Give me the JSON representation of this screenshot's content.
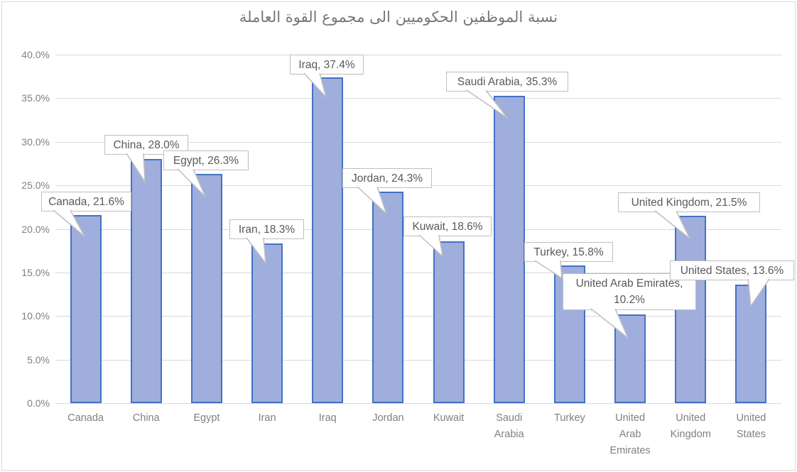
{
  "chart_data": {
    "type": "bar",
    "title": "نسبة الموظفين الحكوميين الى مجموع القوة العاملة",
    "xlabel": "",
    "ylabel": "",
    "categories": [
      "Canada",
      "China",
      "Egypt",
      "Iran",
      "Iraq",
      "Jordan",
      "Kuwait",
      "Saudi Arabia",
      "Turkey",
      "United Arab Emirates",
      "United Kingdom",
      "United States"
    ],
    "values": [
      21.6,
      28.0,
      26.3,
      18.3,
      37.4,
      24.3,
      18.6,
      35.3,
      15.8,
      10.2,
      21.5,
      13.6
    ],
    "unit": "%",
    "ylim": [
      0,
      40
    ],
    "ytick_step": 5,
    "ytick_labels": [
      "0.0%",
      "5.0%",
      "10.0%",
      "15.0%",
      "20.0%",
      "25.0%",
      "30.0%",
      "35.0%",
      "40.0%"
    ],
    "xtick_lines": [
      [
        "Canada"
      ],
      [
        "China"
      ],
      [
        "Egypt"
      ],
      [
        "Iran"
      ],
      [
        "Iraq"
      ],
      [
        "Jordan"
      ],
      [
        "Kuwait"
      ],
      [
        "Saudi",
        "Arabia"
      ],
      [
        "Turkey"
      ],
      [
        "United",
        "Arab",
        "Emirates"
      ],
      [
        "United",
        "Kingdom"
      ],
      [
        "United",
        "States"
      ]
    ],
    "data_labels": [
      [
        "Canada, 21.6%"
      ],
      [
        "China, 28.0%"
      ],
      [
        "Egypt, 26.3%"
      ],
      [
        "Iran, 18.3%"
      ],
      [
        "Iraq, 37.4%"
      ],
      [
        "Jordan, 24.3%"
      ],
      [
        "Kuwait, 18.6%"
      ],
      [
        "Saudi Arabia, 35.3%"
      ],
      [
        "Turkey, 15.8%"
      ],
      [
        "United Arab Emirates,",
        "10.2%"
      ],
      [
        "United Kingdom, 21.5%"
      ],
      [
        "United States, 13.6%"
      ]
    ],
    "grid": true,
    "legend": false,
    "colors": {
      "bar_fill": "#9FAEDC",
      "bar_border": "#4472C4",
      "gridline": "#D9D9D9",
      "axis_text": "#808080",
      "title_text": "#767676",
      "callout_border": "#BFBFBF",
      "callout_text": "#595959",
      "chart_border": "#D9D9D9",
      "background": "#FFFFFF"
    }
  }
}
